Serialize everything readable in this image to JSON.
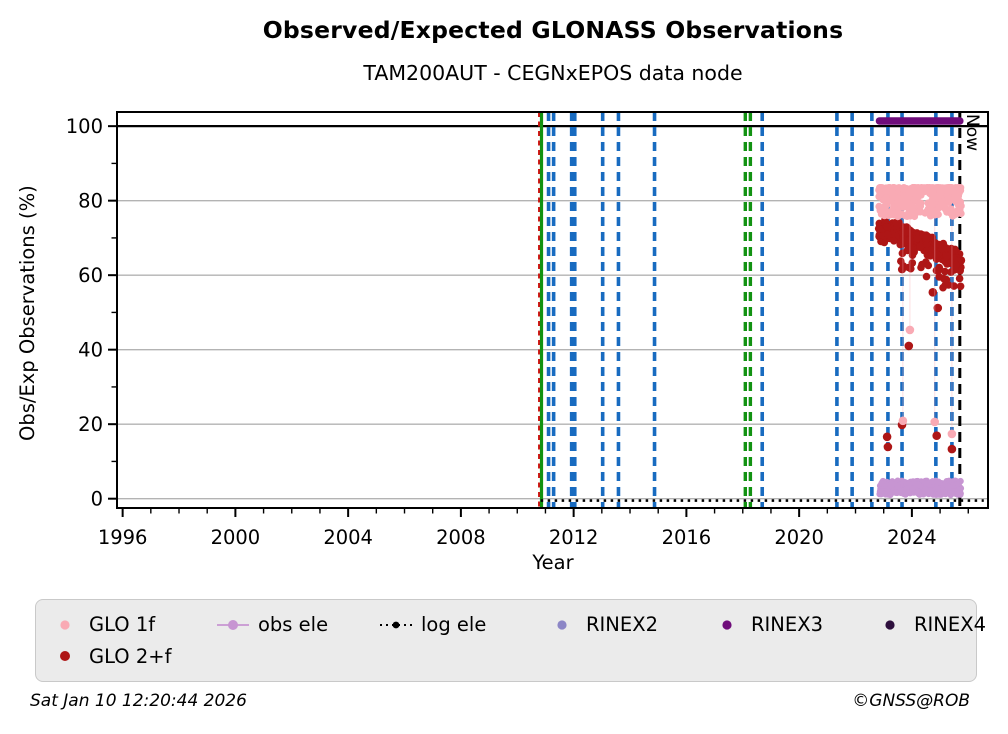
{
  "title": "Observed/Expected GLONASS Observations",
  "subtitle": "TAM200AUT - CEGNxEPOS data node",
  "now_label": "Now",
  "footer": {
    "timestamp": "Sat Jan 10 12:20:44 2026",
    "copyright": "©GNSS@ROB"
  },
  "colors": {
    "glo1f": "#F9AAB4",
    "glo2f": "#AE1616",
    "obs_ele": "#C795D2",
    "log_ele": "#000000",
    "rinex2": "#8C86C6",
    "rinex3": "#6F0C7A",
    "rinex4": "#2E0F3D",
    "event_blue": "#186BC0",
    "event_green": "#129212",
    "event_red": "#D01010",
    "grid": "#b3b3b3",
    "axis": "#000000",
    "legend_bg": "#ebebeb",
    "legend_border": "#c9c9c9"
  },
  "legend": {
    "items": [
      {
        "label": "GLO 1f",
        "marker": "dot",
        "color_key": "glo1f"
      },
      {
        "label": "obs ele",
        "marker": "line-dot",
        "color_key": "obs_ele"
      },
      {
        "label": "log ele",
        "marker": "dotted-line-dot",
        "color_key": "log_ele"
      },
      {
        "label": "RINEX2",
        "marker": "dot",
        "color_key": "rinex2"
      },
      {
        "label": "RINEX3",
        "marker": "dot",
        "color_key": "rinex3"
      },
      {
        "label": "RINEX4",
        "marker": "dot",
        "color_key": "rinex4"
      },
      {
        "label": "GLO 2+f",
        "marker": "dot",
        "color_key": "glo2f"
      }
    ]
  },
  "chart_data": {
    "type": "scatter",
    "title": "Observed/Expected GLONASS Observations",
    "subtitle": "TAM200AUT - CEGNxEPOS data node",
    "xlabel": "Year",
    "ylabel": "Obs/Exp Observations (%)",
    "xlim": [
      1995.8,
      2026.7
    ],
    "ylim": [
      -2.5,
      103.8
    ],
    "seed": 20260110,
    "xticks": {
      "major": [
        1996,
        2000,
        2004,
        2008,
        2012,
        2016,
        2020,
        2024
      ],
      "minor_step": 1,
      "minor_range": [
        1996,
        2026
      ]
    },
    "yticks": {
      "major": [
        0,
        20,
        40,
        60,
        80,
        100
      ],
      "minor": [
        10,
        30,
        50,
        70,
        90
      ]
    },
    "grid": {
      "horizontal_at": [
        0,
        20,
        40,
        60,
        80
      ],
      "reference_line_100": 100
    },
    "now_marker": {
      "year": 2025.7,
      "label": "Now"
    },
    "event_lines": [
      {
        "year": 2010.78,
        "color_key": "event_red",
        "dash": "5 4.5",
        "width": 2.4
      },
      {
        "year": 2010.86,
        "color_key": "event_green",
        "dash": null,
        "width": 3.2
      },
      {
        "year": 2011.11,
        "color_key": "event_blue",
        "dash": "9 6",
        "width": 3.6
      },
      {
        "year": 2011.29,
        "color_key": "event_blue",
        "dash": "9 6",
        "width": 3.6
      },
      {
        "year": 2011.93,
        "color_key": "event_blue",
        "dash": "9 6",
        "width": 3.6
      },
      {
        "year": 2012.04,
        "color_key": "event_blue",
        "dash": "9 6",
        "width": 3.6
      },
      {
        "year": 2013.03,
        "color_key": "event_blue",
        "dash": "9 6",
        "width": 3.6
      },
      {
        "year": 2013.59,
        "color_key": "event_blue",
        "dash": "9 6",
        "width": 3.6
      },
      {
        "year": 2014.87,
        "color_key": "event_blue",
        "dash": "9 6",
        "width": 3.6
      },
      {
        "year": 2018.09,
        "color_key": "event_green",
        "dash": "9 6",
        "width": 3.4
      },
      {
        "year": 2018.27,
        "color_key": "event_green",
        "dash": "9 6",
        "width": 3.4
      },
      {
        "year": 2018.69,
        "color_key": "event_blue",
        "dash": "9 6",
        "width": 3.6
      },
      {
        "year": 2021.34,
        "color_key": "event_blue",
        "dash": "9 6",
        "width": 3.6
      },
      {
        "year": 2021.88,
        "color_key": "event_blue",
        "dash": "9 6",
        "width": 3.6
      },
      {
        "year": 2022.58,
        "color_key": "event_blue",
        "dash": "9 6",
        "width": 3.6
      },
      {
        "year": 2023.15,
        "color_key": "event_blue",
        "dash": "9 6",
        "width": 3.6
      },
      {
        "year": 2023.65,
        "color_key": "event_blue",
        "dash": "9 6",
        "width": 3.6
      },
      {
        "year": 2024.85,
        "color_key": "event_blue",
        "dash": "9 6",
        "width": 3.6
      },
      {
        "year": 2025.42,
        "color_key": "event_blue",
        "dash": "9 6",
        "width": 3.6
      }
    ],
    "series": [
      {
        "name": "log ele",
        "kind": "dotted-line",
        "color_key": "log_ele",
        "line": {
          "x0": 2010.83,
          "x1": 2026.55,
          "y": -0.5,
          "width": 2.6,
          "dash": "2.5 4.5"
        }
      },
      {
        "name": "obs ele",
        "kind": "scatter-band",
        "color_key": "obs_ele",
        "r": 3.3,
        "band": {
          "x0": 2022.85,
          "x1": 2025.74,
          "n": 300,
          "y_min": 1.0,
          "y_span": 3.8
        }
      },
      {
        "name": "GLO 2+f",
        "kind": "scatter-trend",
        "color_key": "glo2f",
        "r": 3.8,
        "trend": {
          "x0": 2022.82,
          "x1": 2025.76,
          "n": 400,
          "y_start": 72.0,
          "y_end": 64.3,
          "bump": 1.2,
          "noise": 3.2,
          "dip_n": 34,
          "dip_depth": 7.5
        },
        "outliers": [
          [
            2023.89,
            41.0
          ],
          [
            2024.74,
            55.4
          ],
          [
            2024.92,
            51.2
          ],
          [
            2023.65,
            19.8
          ],
          [
            2024.88,
            16.9
          ],
          [
            2023.12,
            16.6
          ],
          [
            2023.15,
            13.9
          ],
          [
            2025.42,
            13.3
          ]
        ]
      },
      {
        "name": "GLO 1f",
        "kind": "scatter-topband",
        "color_key": "glo1f",
        "r": 3.6,
        "band": {
          "x0": 2022.82,
          "x1": 2025.76,
          "n": 340,
          "y_top": 83.5,
          "spread": 7.8,
          "pow": 2.4
        },
        "outliers": [
          [
            2023.93,
            45.3
          ],
          [
            2023.68,
            20.9
          ],
          [
            2024.81,
            20.6
          ],
          [
            2025.42,
            17.4
          ]
        ],
        "connector_top": 78.5
      },
      {
        "name": "RINEX3",
        "kind": "thick-line",
        "color_key": "rinex3",
        "line": {
          "x0": 2022.85,
          "x1": 2025.7,
          "y": 101.4,
          "width": 7.5
        }
      },
      {
        "name": "RINEX2",
        "kind": "legend-only",
        "color_key": "rinex2"
      },
      {
        "name": "RINEX4",
        "kind": "legend-only",
        "color_key": "rinex4"
      }
    ]
  }
}
